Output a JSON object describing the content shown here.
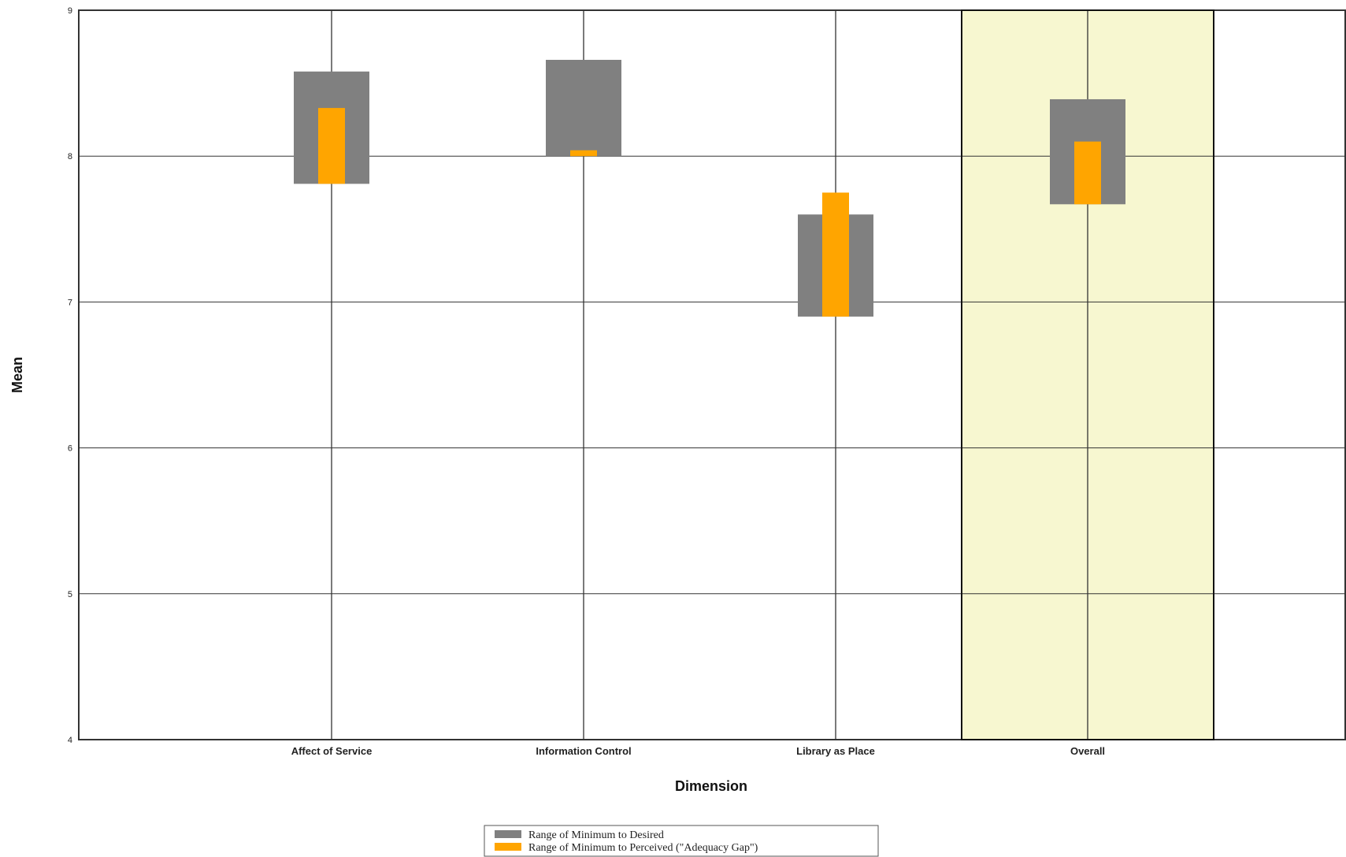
{
  "chart_data": {
    "type": "range-bar",
    "categories": [
      "Affect of Service",
      "Information Control",
      "Library as Place",
      "Overall"
    ],
    "xlabel": "Dimension",
    "ylabel": "Mean",
    "ylim": [
      4,
      9
    ],
    "yticks": [
      4,
      5,
      6,
      7,
      8,
      9
    ],
    "grid": true,
    "highlight_category": "Overall",
    "colors": {
      "desired_range": "#808080",
      "perceived_range": "#FFA500",
      "highlight_fill": "#F7F7D0",
      "grid": "#333333"
    },
    "series": [
      {
        "name": "Range of Minimum to Desired",
        "low": [
          7.81,
          8.0,
          6.9,
          7.67
        ],
        "high": [
          8.58,
          8.66,
          7.6,
          8.39
        ]
      },
      {
        "name": "Range of Minimum to Perceived (\"Adequacy Gap\")",
        "low": [
          7.81,
          8.0,
          6.9,
          7.67
        ],
        "high": [
          8.33,
          8.04,
          7.75,
          8.1
        ]
      }
    ],
    "legend": {
      "placement": "bottom-center",
      "items": [
        {
          "label": "Range of Minimum to Desired",
          "color": "#808080"
        },
        {
          "label": "Range of Minimum to Perceived (\"Adequacy Gap\")",
          "color": "#FFA500"
        }
      ]
    }
  }
}
